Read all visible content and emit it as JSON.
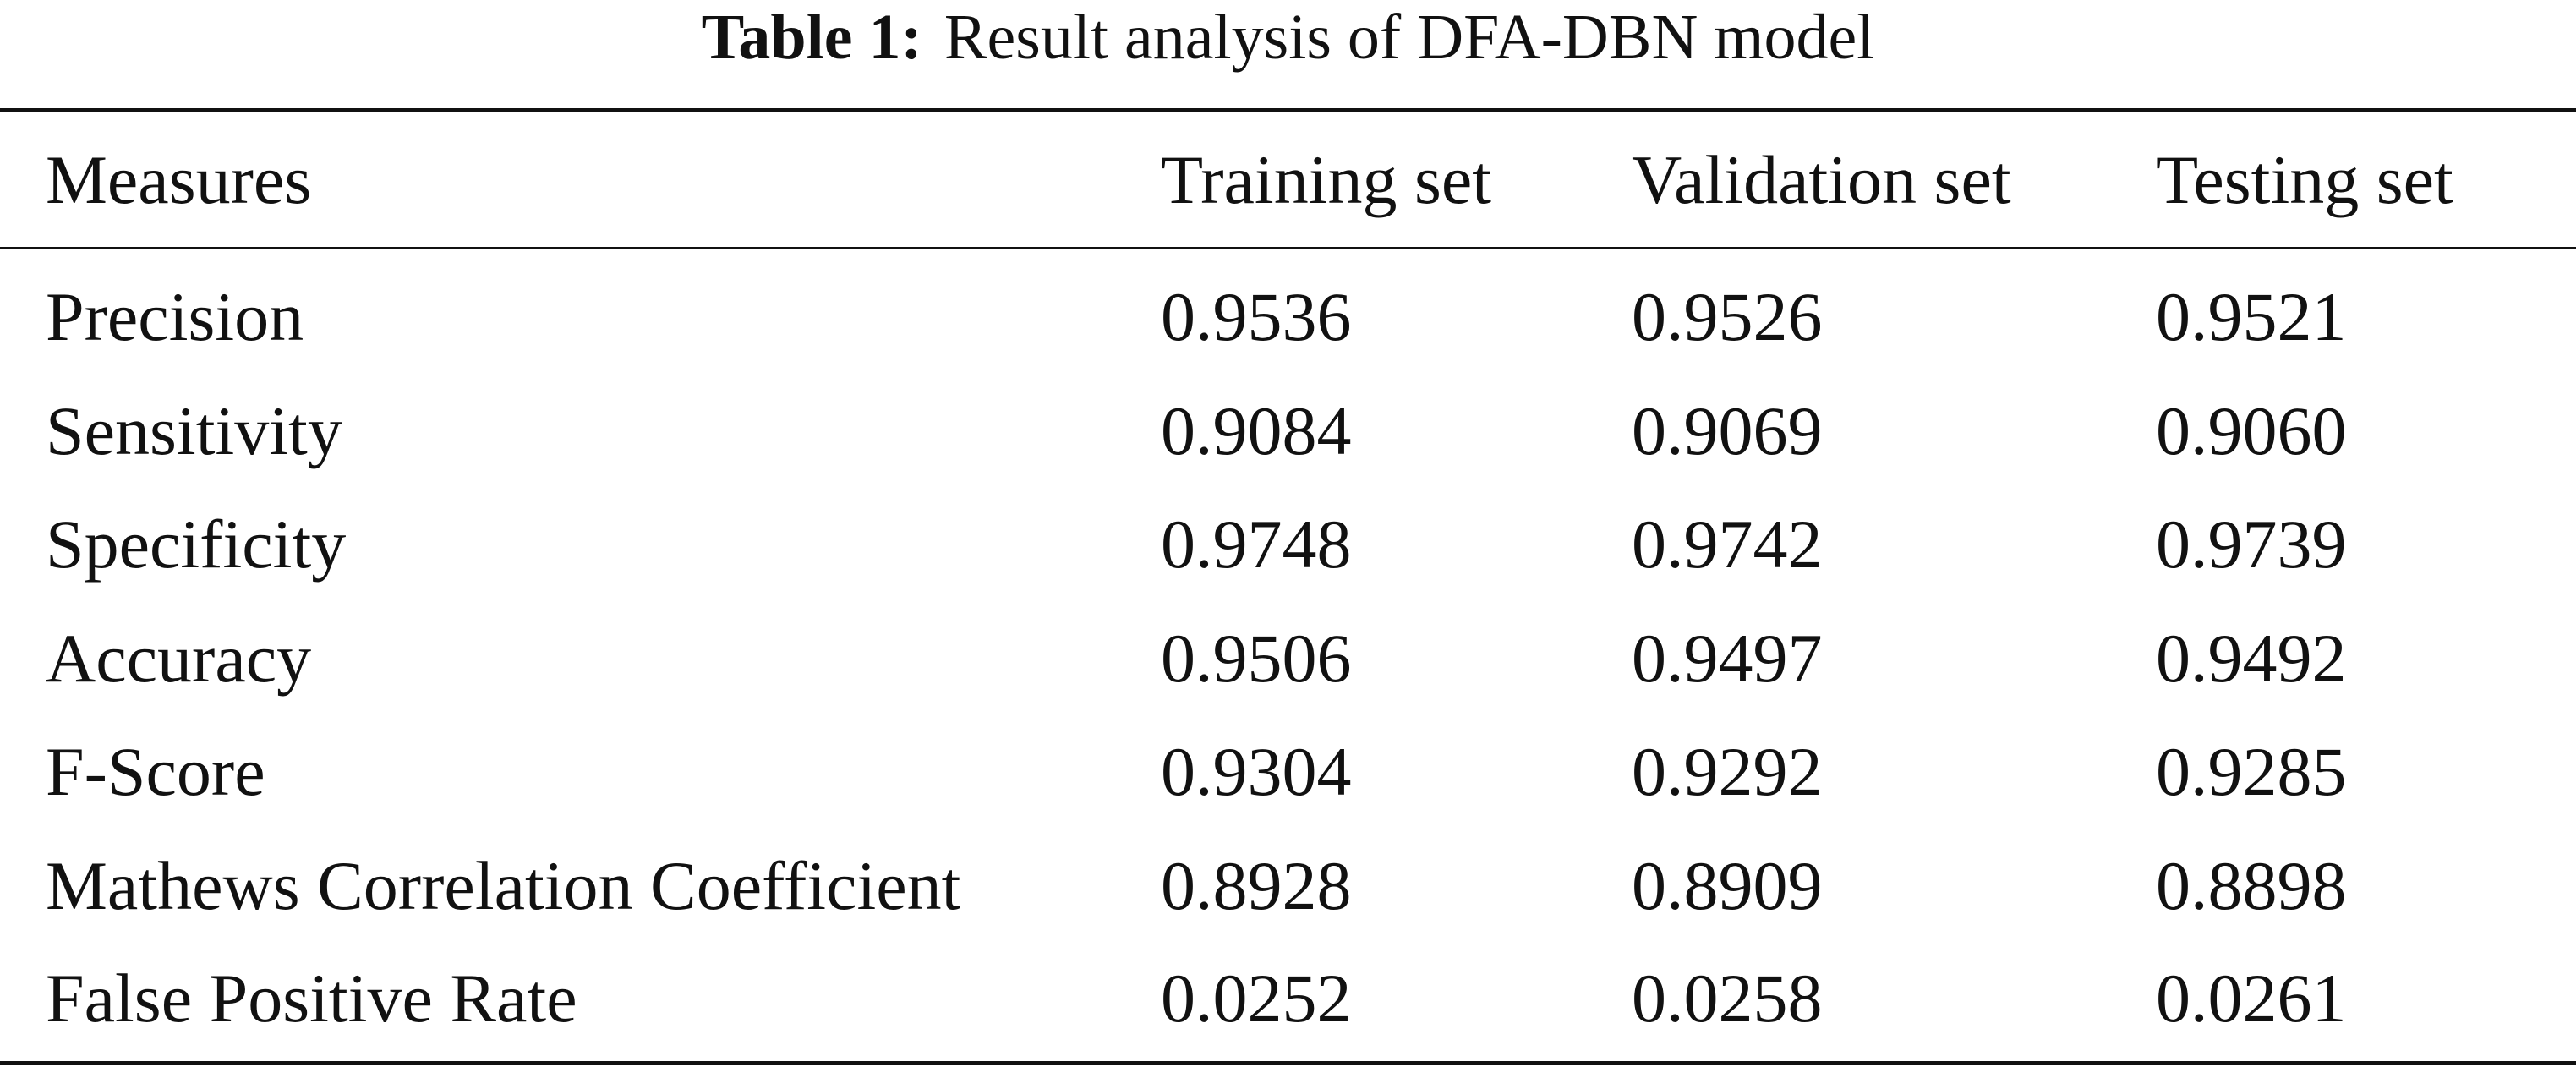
{
  "caption": {
    "label": "Table 1:",
    "text": "Result analysis of DFA-DBN model"
  },
  "columns": [
    "Measures",
    "Training set",
    "Validation set",
    "Testing set"
  ],
  "rows": [
    [
      "Precision",
      "0.9536",
      "0.9526",
      "0.9521"
    ],
    [
      "Sensitivity",
      "0.9084",
      "0.9069",
      "0.9060"
    ],
    [
      "Specificity",
      "0.9748",
      "0.9742",
      "0.9739"
    ],
    [
      "Accuracy",
      "0.9506",
      "0.9497",
      "0.9492"
    ],
    [
      "F-Score",
      "0.9304",
      "0.9292",
      "0.9285"
    ],
    [
      "Mathews Correlation Coefficient",
      "0.8928",
      "0.8909",
      "0.8898"
    ],
    [
      "False Positive Rate",
      "0.0252",
      "0.0258",
      "0.0261"
    ]
  ]
}
